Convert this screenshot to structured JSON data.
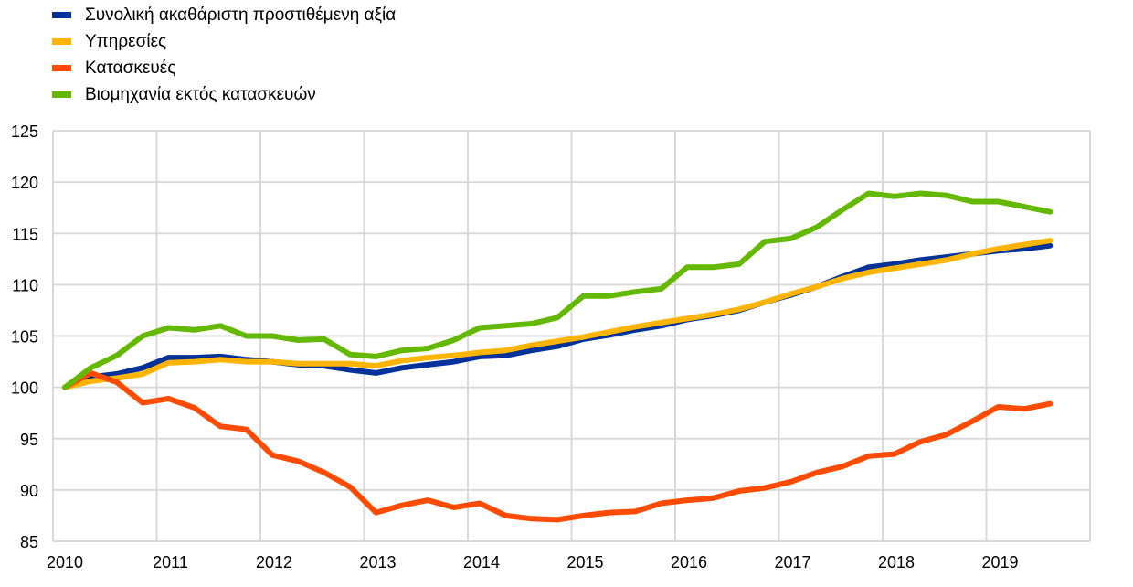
{
  "chart_data": {
    "type": "line",
    "title": "",
    "xlabel": "",
    "ylabel": "",
    "ylim": [
      85,
      125
    ],
    "yticks": [
      "85",
      "90",
      "95",
      "100",
      "105",
      "110",
      "115",
      "120",
      "125"
    ],
    "xticks": [
      "2010",
      "2011",
      "2012",
      "2013",
      "2014",
      "2015",
      "2016",
      "2017",
      "2018",
      "2019"
    ],
    "x_start": "2010 Q1",
    "frequency": "quarterly",
    "grid": true,
    "legend_position": "top-left",
    "series": [
      {
        "name": "Συνολική ακαθάριστη προστιθέμενη αξία",
        "color": "#003299",
        "values": [
          100,
          101.0,
          101.3,
          101.9,
          102.9,
          102.9,
          103.0,
          102.7,
          102.5,
          102.2,
          102.1,
          101.7,
          101.4,
          101.9,
          102.2,
          102.5,
          103.0,
          103.1,
          103.6,
          104.0,
          104.7,
          105.1,
          105.6,
          106.0,
          106.6,
          107.0,
          107.5,
          108.3,
          109.0,
          109.8,
          110.8,
          111.7,
          112.0,
          112.4,
          112.7,
          113.0,
          113.3,
          113.5,
          113.8
        ]
      },
      {
        "name": "Υπηρεσίες",
        "color": "#FFB400",
        "values": [
          100,
          100.6,
          100.9,
          101.3,
          102.4,
          102.5,
          102.7,
          102.5,
          102.5,
          102.3,
          102.3,
          102.3,
          102.1,
          102.6,
          102.9,
          103.1,
          103.4,
          103.6,
          104.1,
          104.5,
          104.9,
          105.4,
          105.9,
          106.3,
          106.7,
          107.1,
          107.6,
          108.3,
          109.1,
          109.8,
          110.6,
          111.2,
          111.6,
          112.0,
          112.4,
          113.0,
          113.5,
          113.9,
          114.3
        ]
      },
      {
        "name": "Κατασκευές",
        "color": "#FF4B00",
        "values": [
          100,
          101.4,
          100.5,
          98.5,
          98.9,
          98.0,
          96.2,
          95.9,
          93.4,
          92.8,
          91.7,
          90.3,
          87.8,
          88.5,
          89.0,
          88.3,
          88.7,
          87.5,
          87.2,
          87.1,
          87.5,
          87.8,
          87.9,
          88.7,
          89.0,
          89.2,
          89.9,
          90.2,
          90.8,
          91.7,
          92.3,
          93.3,
          93.5,
          94.7,
          95.4,
          96.7,
          98.1,
          97.9,
          98.4
        ]
      },
      {
        "name": "Βιομηχανία εκτός κατασκευών",
        "color": "#65B800",
        "values": [
          100,
          101.9,
          103.1,
          105.0,
          105.8,
          105.6,
          106.0,
          105.0,
          105.0,
          104.6,
          104.7,
          103.2,
          103.0,
          103.6,
          103.8,
          104.6,
          105.8,
          106.0,
          106.2,
          106.8,
          108.9,
          108.9,
          109.3,
          109.6,
          111.7,
          111.7,
          112.0,
          114.2,
          114.5,
          115.6,
          117.3,
          118.9,
          118.6,
          118.9,
          118.7,
          118.1,
          118.1,
          117.6,
          117.1
        ]
      }
    ]
  }
}
